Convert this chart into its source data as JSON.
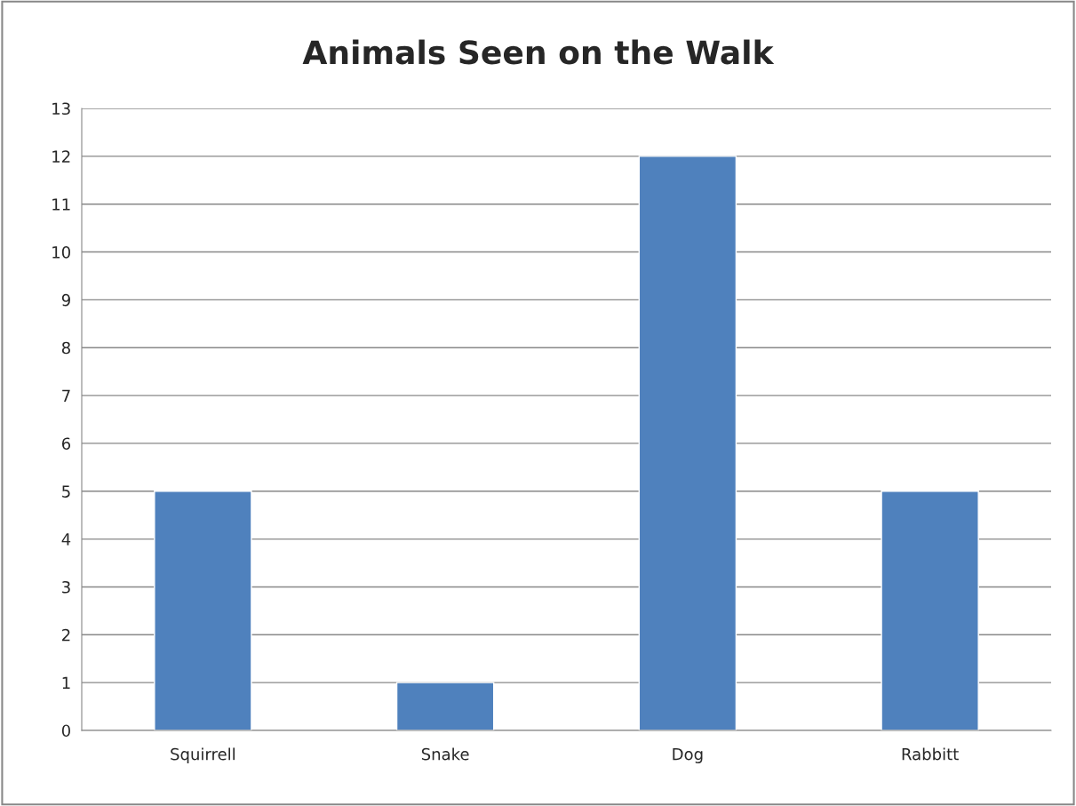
{
  "chart_data": {
    "type": "bar",
    "title": "Animals Seen on the Walk",
    "categories": [
      "Squirrell",
      "Snake",
      "Dog",
      "Rabbitt"
    ],
    "values": [
      5,
      1,
      12,
      5
    ],
    "color": "#4f81bd",
    "ylim": [
      0,
      13
    ],
    "yticks": [
      0,
      1,
      2,
      3,
      4,
      5,
      6,
      7,
      8,
      9,
      10,
      11,
      12,
      13
    ],
    "grid": "y",
    "legend": false
  }
}
